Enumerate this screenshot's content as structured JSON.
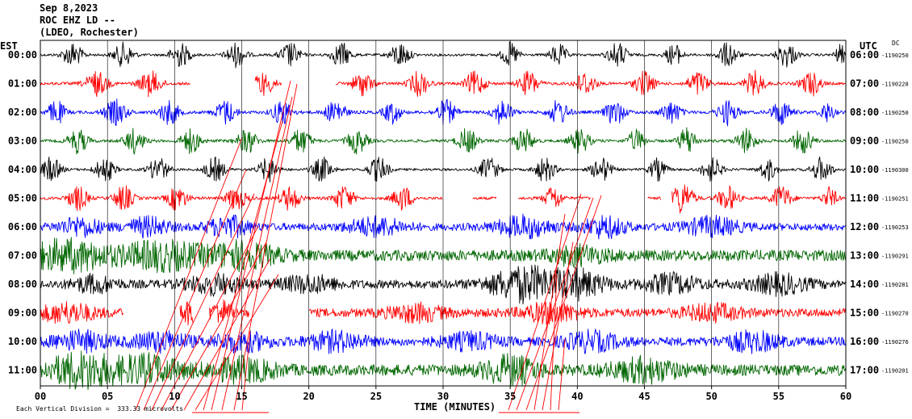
{
  "header": {
    "date": "Sep 8,2023",
    "station": "ROC EHZ LD --",
    "network": "(LDEO, Rochester)"
  },
  "chart_data": {
    "type": "seismogram",
    "left_axis_label": "EST",
    "right_axis_label": "UTC",
    "dc_label": "DC",
    "xlabel": "TIME (MINUTES)",
    "x_ticks": [
      "00",
      "05",
      "10",
      "15",
      "20",
      "25",
      "30",
      "35",
      "40",
      "45",
      "50",
      "55",
      "60"
    ],
    "xlim": [
      0,
      60
    ],
    "scale_note": "Each Vertical Division =  333.33 microvolts",
    "colors": {
      "black": "#000000",
      "red": "#ff0000",
      "blue": "#0000ff",
      "green": "#006600",
      "grid": "#000000"
    },
    "rows": [
      {
        "est": "00:00",
        "utc": "06:00",
        "dc": "-1190250",
        "color": "#000000",
        "noise": 0.1,
        "gaps": [],
        "bursts": [
          [
            2.4,
            0.7,
            1.0
          ],
          [
            6.2,
            0.7,
            1.0
          ],
          [
            10.4,
            0.7,
            1.0
          ],
          [
            14.6,
            0.7,
            1.0
          ],
          [
            18.6,
            0.7,
            1.0
          ],
          [
            22.4,
            0.7,
            1.0
          ],
          [
            26.8,
            0.7,
            1.0
          ],
          [
            35.0,
            0.6,
            1.0
          ],
          [
            38.6,
            0.6,
            0.9
          ],
          [
            43.0,
            0.7,
            1.0
          ],
          [
            47.2,
            0.6,
            0.9
          ],
          [
            51.2,
            0.7,
            1.0
          ],
          [
            55.6,
            0.7,
            1.0
          ],
          [
            59.6,
            0.4,
            0.8
          ]
        ]
      },
      {
        "est": "01:00",
        "utc": "07:00",
        "dc": "-1190228",
        "color": "#ff0000",
        "noise": 0.12,
        "gaps": [
          [
            11.2,
            16.0
          ],
          [
            18.0,
            22.0
          ]
        ],
        "bursts": [
          [
            4.2,
            0.8,
            1.0
          ],
          [
            8.2,
            0.8,
            1.0
          ],
          [
            16.5,
            0.5,
            1.0
          ],
          [
            17.4,
            0.3,
            0.8
          ],
          [
            24.0,
            0.7,
            1.0
          ],
          [
            28.2,
            0.7,
            1.0
          ],
          [
            32.4,
            0.7,
            1.0
          ],
          [
            36.4,
            0.7,
            1.0
          ],
          [
            40.6,
            0.7,
            1.0
          ],
          [
            45.0,
            0.7,
            1.0
          ],
          [
            49.0,
            0.7,
            1.0
          ],
          [
            53.2,
            0.7,
            1.0
          ],
          [
            57.4,
            0.7,
            1.0
          ]
        ]
      },
      {
        "est": "02:00",
        "utc": "08:00",
        "dc": "-1190250",
        "color": "#0000ff",
        "noise": 0.13,
        "gaps": [],
        "bursts": [
          [
            1.2,
            0.6,
            1.0
          ],
          [
            5.6,
            0.8,
            1.0
          ],
          [
            9.6,
            0.7,
            1.0
          ],
          [
            13.8,
            0.7,
            1.0
          ],
          [
            18.0,
            0.7,
            1.0
          ],
          [
            22.0,
            0.7,
            1.0
          ],
          [
            26.2,
            0.6,
            0.9
          ],
          [
            30.2,
            0.7,
            1.0
          ],
          [
            34.4,
            0.7,
            1.0
          ],
          [
            38.6,
            0.7,
            1.0
          ],
          [
            42.8,
            0.7,
            1.0
          ],
          [
            47.0,
            0.7,
            0.9
          ],
          [
            51.2,
            0.7,
            1.0
          ],
          [
            55.2,
            0.7,
            1.0
          ],
          [
            58.6,
            0.5,
            0.8
          ]
        ]
      },
      {
        "est": "03:00",
        "utc": "09:00",
        "dc": "-1190250",
        "color": "#006600",
        "noise": 0.12,
        "gaps": [],
        "bursts": [
          [
            2.8,
            0.7,
            1.0
          ],
          [
            7.0,
            0.7,
            1.0
          ],
          [
            11.2,
            0.7,
            1.0
          ],
          [
            15.4,
            0.7,
            1.0
          ],
          [
            19.4,
            0.7,
            1.0
          ],
          [
            23.6,
            0.7,
            1.0
          ],
          [
            31.8,
            0.7,
            1.0
          ],
          [
            36.0,
            0.7,
            1.0
          ],
          [
            40.2,
            0.7,
            1.0
          ],
          [
            44.4,
            0.6,
            0.9
          ],
          [
            48.2,
            0.6,
            1.2
          ],
          [
            52.6,
            0.7,
            1.0
          ],
          [
            56.8,
            0.7,
            1.0
          ]
        ]
      },
      {
        "est": "04:00",
        "utc": "10:00",
        "dc": "-1190300",
        "color": "#000000",
        "noise": 0.1,
        "gaps": [],
        "bursts": [
          [
            0.8,
            0.7,
            1.0
          ],
          [
            4.8,
            0.7,
            1.0
          ],
          [
            8.8,
            0.7,
            1.0
          ],
          [
            13.0,
            0.7,
            1.0
          ],
          [
            17.0,
            0.7,
            1.0
          ],
          [
            21.0,
            0.7,
            1.0
          ],
          [
            25.2,
            0.7,
            1.0
          ],
          [
            33.4,
            0.7,
            1.0
          ],
          [
            37.6,
            0.7,
            1.0
          ],
          [
            41.8,
            0.7,
            1.0
          ],
          [
            46.0,
            0.6,
            0.9
          ],
          [
            50.0,
            0.7,
            1.0
          ],
          [
            54.2,
            0.6,
            0.9
          ],
          [
            58.2,
            0.7,
            1.0
          ]
        ]
      },
      {
        "est": "05:00",
        "utc": "11:00",
        "dc": "-1190251",
        "color": "#ff0000",
        "noise": 0.12,
        "gaps": [
          [
            30.0,
            32.2
          ],
          [
            34.0,
            35.6
          ],
          [
            41.0,
            45.2
          ],
          [
            46.2,
            47.0
          ]
        ],
        "bursts": [
          [
            2.8,
            0.7,
            1.0
          ],
          [
            6.2,
            0.7,
            1.0
          ],
          [
            10.2,
            0.7,
            1.0
          ],
          [
            14.6,
            0.7,
            1.0
          ],
          [
            18.6,
            0.7,
            1.0
          ],
          [
            22.6,
            0.7,
            1.0
          ],
          [
            27.0,
            0.7,
            1.0
          ],
          [
            38.2,
            0.6,
            1.0
          ],
          [
            47.8,
            0.8,
            1.3
          ],
          [
            51.2,
            0.7,
            1.0
          ],
          [
            55.2,
            0.7,
            1.0
          ],
          [
            58.8,
            0.5,
            0.9
          ]
        ]
      },
      {
        "est": "06:00",
        "utc": "12:00",
        "dc": "-1190253",
        "color": "#0000ff",
        "noise": 0.3,
        "gaps": [],
        "bursts": [
          [
            3.0,
            1.5,
            0.7
          ],
          [
            8.0,
            1.5,
            0.7
          ],
          [
            14.0,
            1.5,
            0.8
          ],
          [
            25.0,
            2.0,
            0.7
          ],
          [
            36.0,
            2.0,
            0.8
          ],
          [
            42.0,
            1.5,
            0.8
          ],
          [
            50.0,
            2.0,
            0.7
          ]
        ]
      },
      {
        "est": "07:00",
        "utc": "13:00",
        "dc": "-1190291",
        "color": "#006600",
        "noise": 0.45,
        "gaps": [],
        "bursts": [
          [
            2.0,
            3.0,
            1.1
          ],
          [
            9.0,
            3.0,
            1.0
          ],
          [
            15.0,
            2.5,
            0.9
          ],
          [
            40.0,
            2.0,
            0.6
          ]
        ]
      },
      {
        "est": "08:00",
        "utc": "14:00",
        "dc": "-1190281",
        "color": "#000000",
        "noise": 0.35,
        "gaps": [],
        "bursts": [
          [
            4.0,
            1.5,
            0.6
          ],
          [
            13.0,
            2.0,
            0.7
          ],
          [
            20.0,
            2.0,
            0.6
          ],
          [
            36.0,
            2.5,
            1.3
          ],
          [
            40.0,
            2.0,
            1.0
          ],
          [
            47.0,
            2.0,
            0.7
          ],
          [
            55.0,
            2.0,
            0.7
          ]
        ]
      },
      {
        "est": "09:00",
        "utc": "15:00",
        "dc": "-1190270",
        "color": "#ff0000",
        "noise": 0.35,
        "gaps": [
          [
            6.2,
            10.4
          ],
          [
            11.4,
            12.6
          ],
          [
            15.6,
            20.0
          ]
        ],
        "bursts": [
          [
            2.0,
            2.0,
            0.7
          ],
          [
            11.0,
            0.6,
            0.8
          ],
          [
            13.5,
            0.8,
            0.8
          ],
          [
            28.0,
            2.0,
            0.6
          ],
          [
            38.0,
            2.0,
            0.7
          ],
          [
            50.0,
            2.0,
            0.6
          ]
        ]
      },
      {
        "est": "10:00",
        "utc": "16:00",
        "dc": "-1190276",
        "color": "#0000ff",
        "noise": 0.35,
        "gaps": [],
        "bursts": [
          [
            3.0,
            2.0,
            0.7
          ],
          [
            9.0,
            2.0,
            0.7
          ],
          [
            15.0,
            2.0,
            0.7
          ],
          [
            22.0,
            2.0,
            0.7
          ],
          [
            32.0,
            2.0,
            0.6
          ],
          [
            41.0,
            2.0,
            0.7
          ],
          [
            53.0,
            2.0,
            0.7
          ]
        ]
      },
      {
        "est": "11:00",
        "utc": "17:00",
        "dc": "-1190201",
        "color": "#006600",
        "noise": 0.45,
        "gaps": [],
        "bursts": [
          [
            3.0,
            2.5,
            1.3
          ],
          [
            8.0,
            2.5,
            1.0
          ],
          [
            15.0,
            2.5,
            0.8
          ],
          [
            35.0,
            2.0,
            1.0
          ],
          [
            45.0,
            2.5,
            0.8
          ]
        ]
      }
    ],
    "annotation_color": "#ff0000"
  }
}
